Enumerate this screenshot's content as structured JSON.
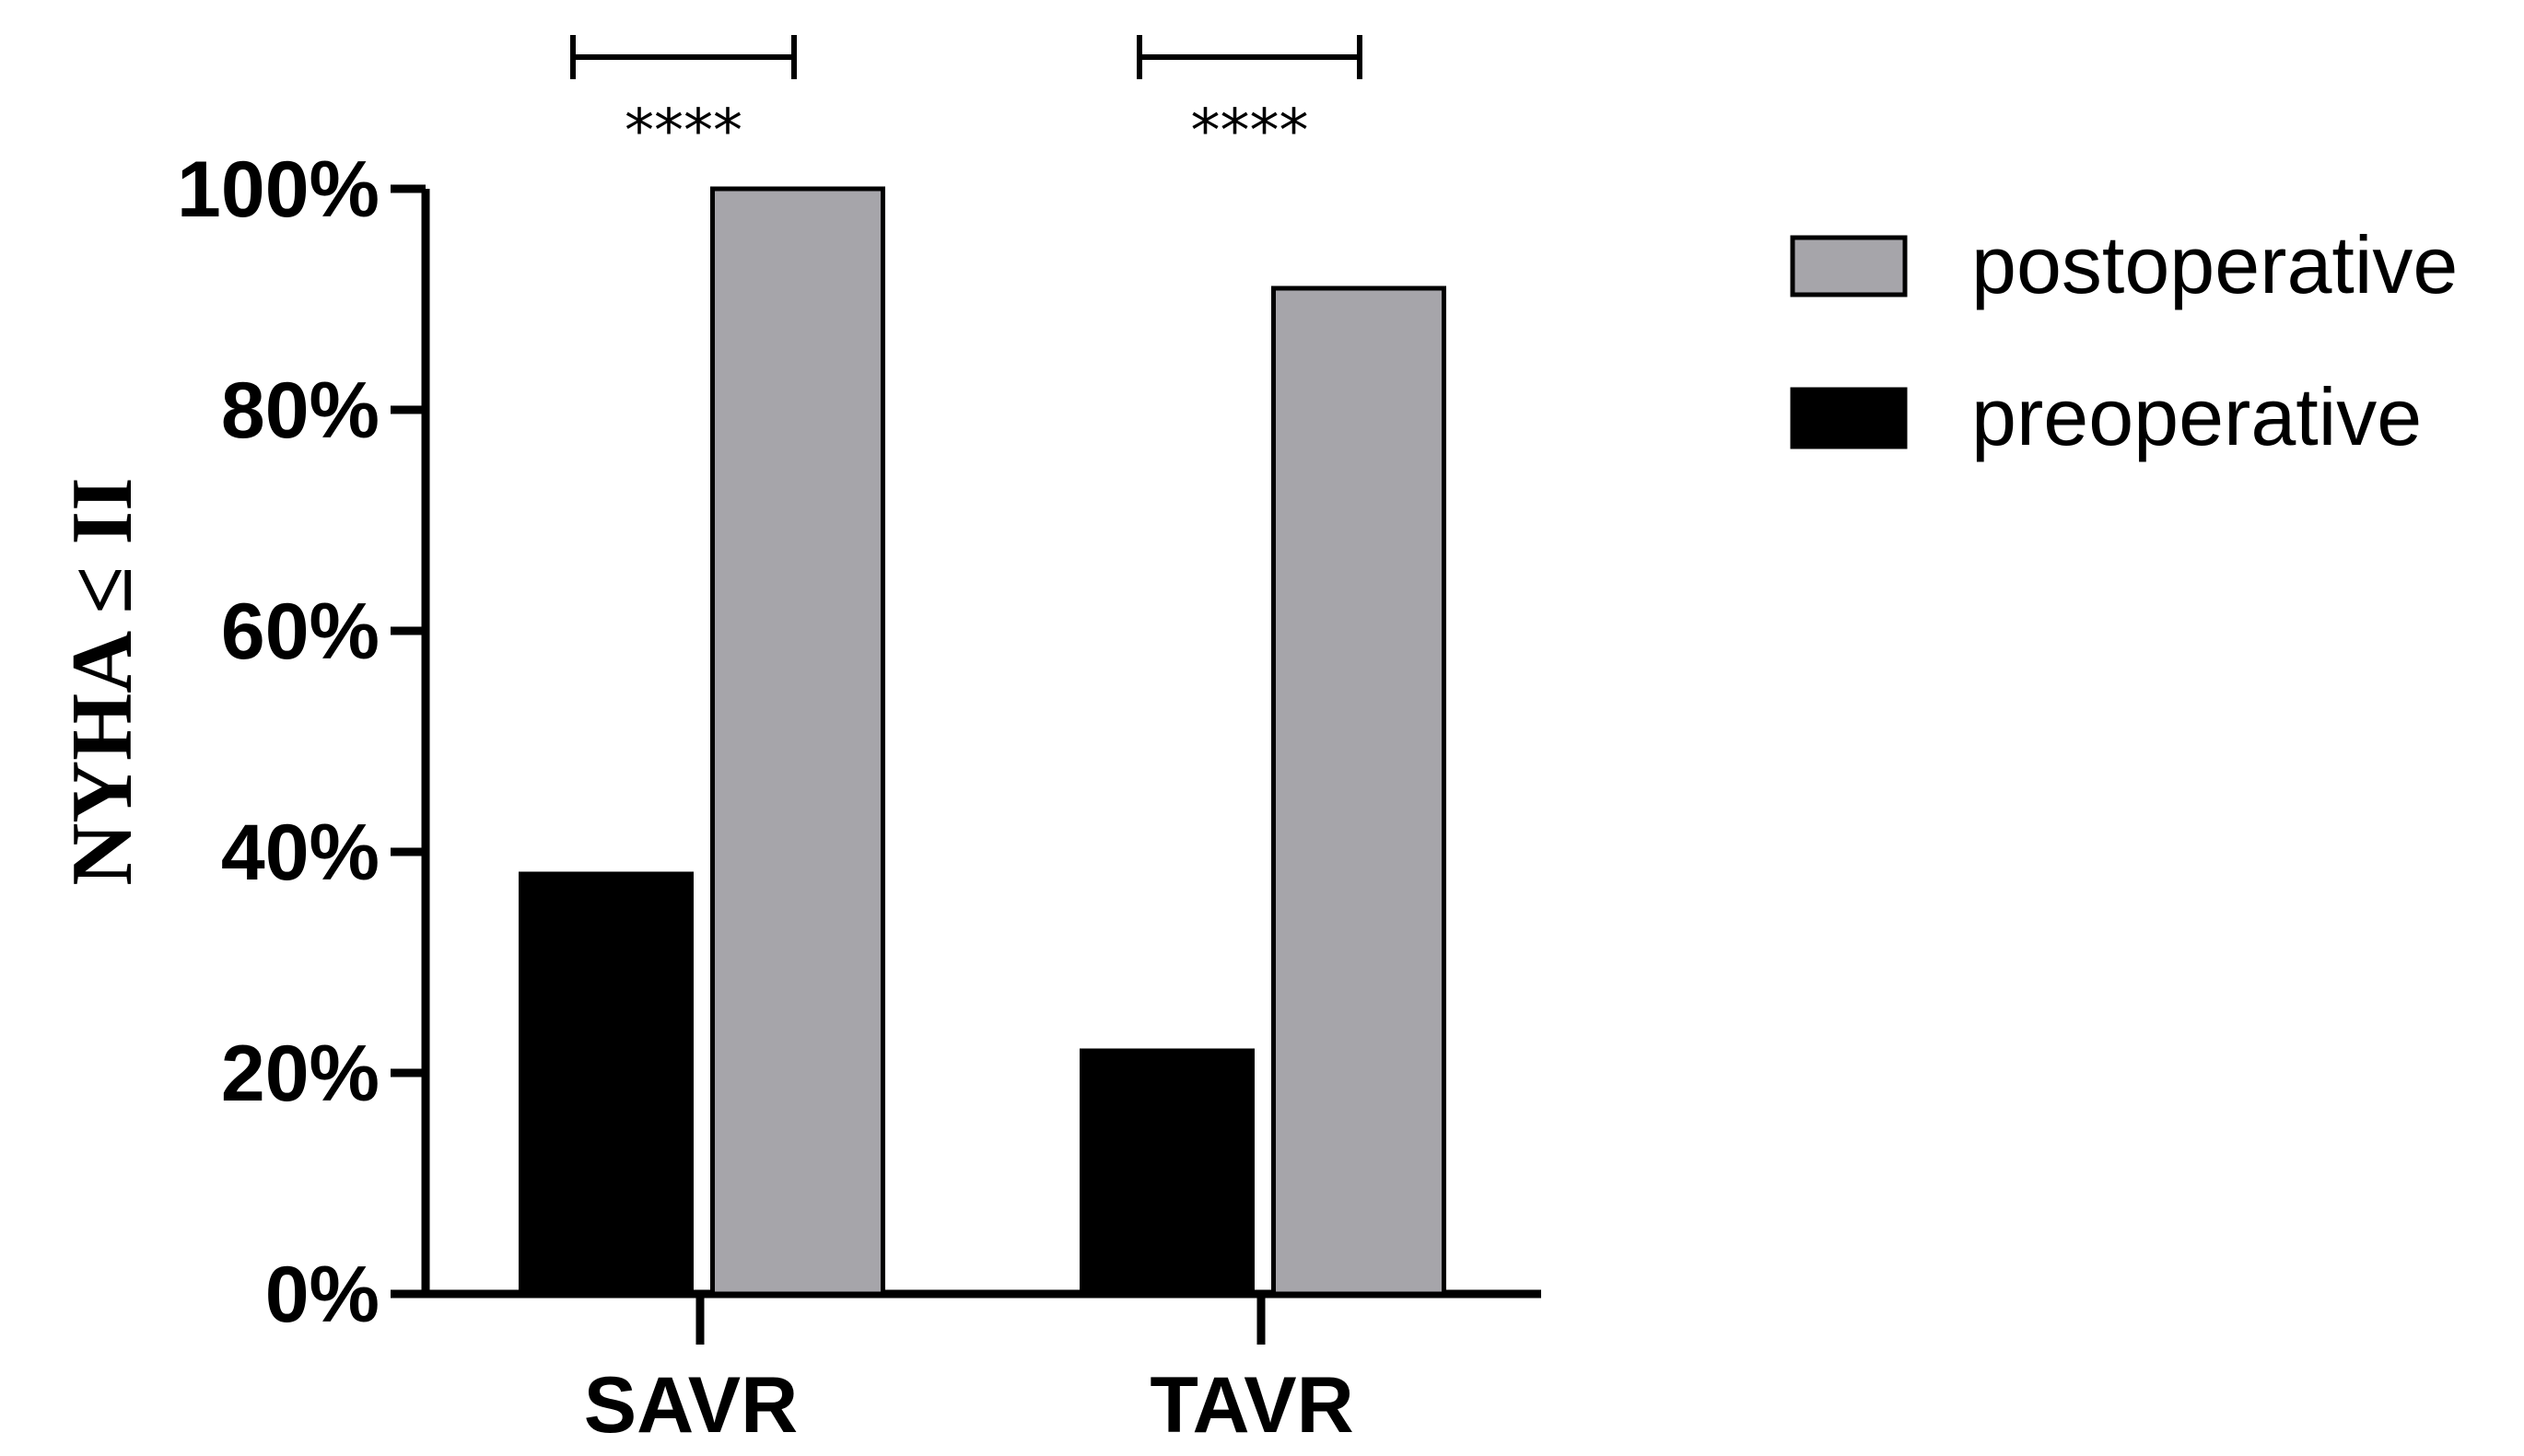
{
  "chart_data": {
    "type": "bar",
    "categories": [
      "SAVR",
      "TAVR"
    ],
    "series": [
      {
        "name": "preoperative",
        "values": [
          38,
          22
        ],
        "color": "#000000"
      },
      {
        "name": "postoperative",
        "values": [
          100,
          91
        ],
        "color": "#a6a5aa"
      }
    ],
    "title": "",
    "xlabel": "",
    "ylabel": "NYHA ≤ II",
    "ylim": [
      0,
      100
    ],
    "yticks": [
      "0%",
      "20%",
      "40%",
      "60%",
      "80%",
      "100%"
    ],
    "ytick_values": [
      0,
      20,
      40,
      60,
      80,
      100
    ],
    "grid": false,
    "legend": {
      "placement": "top-right",
      "entries": [
        {
          "name": "postoperative",
          "color": "#a6a5aa"
        },
        {
          "name": "preoperative",
          "color": "#000000"
        }
      ]
    },
    "annotations": [
      {
        "category": "SAVR",
        "text": "****"
      },
      {
        "category": "TAVR",
        "text": "****"
      }
    ]
  }
}
